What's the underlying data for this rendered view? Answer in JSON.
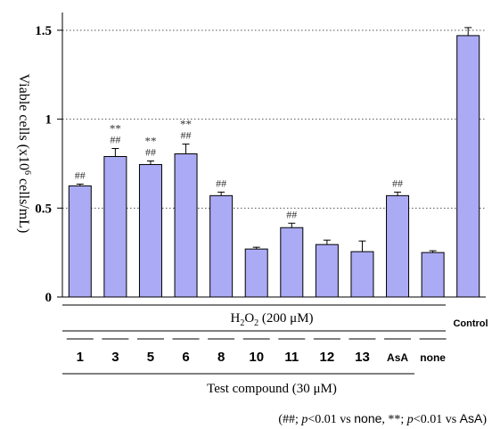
{
  "chart_data": {
    "type": "bar",
    "ylabel_main": "Viable cells (x10",
    "ylabel_sup": "6",
    "ylabel_tail": " cells/mL)",
    "yticks": [
      "0",
      "0.5",
      "1",
      "1.5"
    ],
    "ytick_values": [
      0,
      0.5,
      1,
      1.5
    ],
    "ylim": [
      0,
      1.6
    ],
    "grid": "dotted horizontal at 0.5, 1, 1.5",
    "bar_color": "#aaaaf5",
    "categories": [
      "1",
      "3",
      "5",
      "6",
      "8",
      "10",
      "11",
      "12",
      "13",
      "AsA",
      "none",
      "Control"
    ],
    "values": [
      0.625,
      0.79,
      0.745,
      0.805,
      0.57,
      0.27,
      0.39,
      0.295,
      0.255,
      0.57,
      0.25,
      1.47
    ],
    "errors": [
      0.01,
      0.045,
      0.02,
      0.055,
      0.02,
      0.01,
      0.025,
      0.025,
      0.06,
      0.02,
      0.01,
      0.045
    ],
    "sig_hash": [
      "##",
      "##",
      "##",
      "##",
      "##",
      "",
      "##",
      "",
      "",
      "##",
      "",
      ""
    ],
    "sig_star": [
      "",
      "**",
      "**",
      "**",
      "",
      "",
      "",
      "",
      "",
      "",
      "",
      ""
    ],
    "h2o2_label_pre": "H",
    "h2o2_sub1": "2",
    "h2o2_mid": "O",
    "h2o2_sub2": "2",
    "h2o2_post": " (200 μM)",
    "control_label": "Control",
    "test_compound_label": "Test compound (30 μM)",
    "footnote": {
      "p1": "(##; ",
      "p_it1": "p",
      "p2": "<0.01 vs ",
      "none": "none",
      "p3": ", **; ",
      "p_it2": "p",
      "p4": "<0.01 vs ",
      "asa": "AsA",
      "p5": ")"
    }
  }
}
